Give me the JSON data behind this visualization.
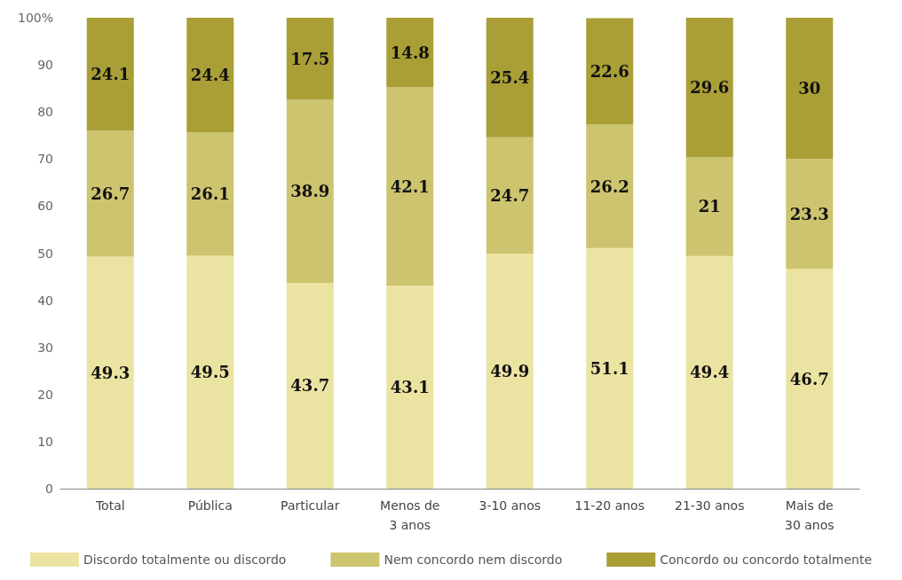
{
  "chart_data": {
    "type": "bar",
    "stacked": true,
    "data_labels": true,
    "grid": false,
    "legend": "bottom",
    "categories": [
      "Total",
      "Pública",
      "Particular",
      "Menos de\n3 anos",
      "3-10 anos",
      "11-20 anos",
      "21-30 anos",
      "Mais de\n30 anos"
    ],
    "ylim": [
      0,
      100
    ],
    "yticks": [
      0,
      10,
      20,
      30,
      40,
      50,
      60,
      70,
      80,
      90,
      {
        "value": 100,
        "label": "100%"
      }
    ],
    "series": [
      {
        "name": "Discordo totalmente ou discordo",
        "color": "#ebe3a1",
        "values": [
          49.3,
          49.5,
          43.7,
          43.1,
          49.9,
          51.1,
          49.4,
          46.7
        ]
      },
      {
        "name": "Nem concordo nem discordo",
        "color": "#cdc46f",
        "values": [
          26.7,
          26.1,
          38.9,
          42.1,
          24.7,
          26.2,
          21,
          23.3
        ]
      },
      {
        "name": "Concordo ou concordo totalmente",
        "color": "#a99f36",
        "values": [
          24.1,
          24.4,
          17.5,
          14.8,
          25.4,
          22.6,
          29.6,
          30
        ]
      }
    ]
  }
}
